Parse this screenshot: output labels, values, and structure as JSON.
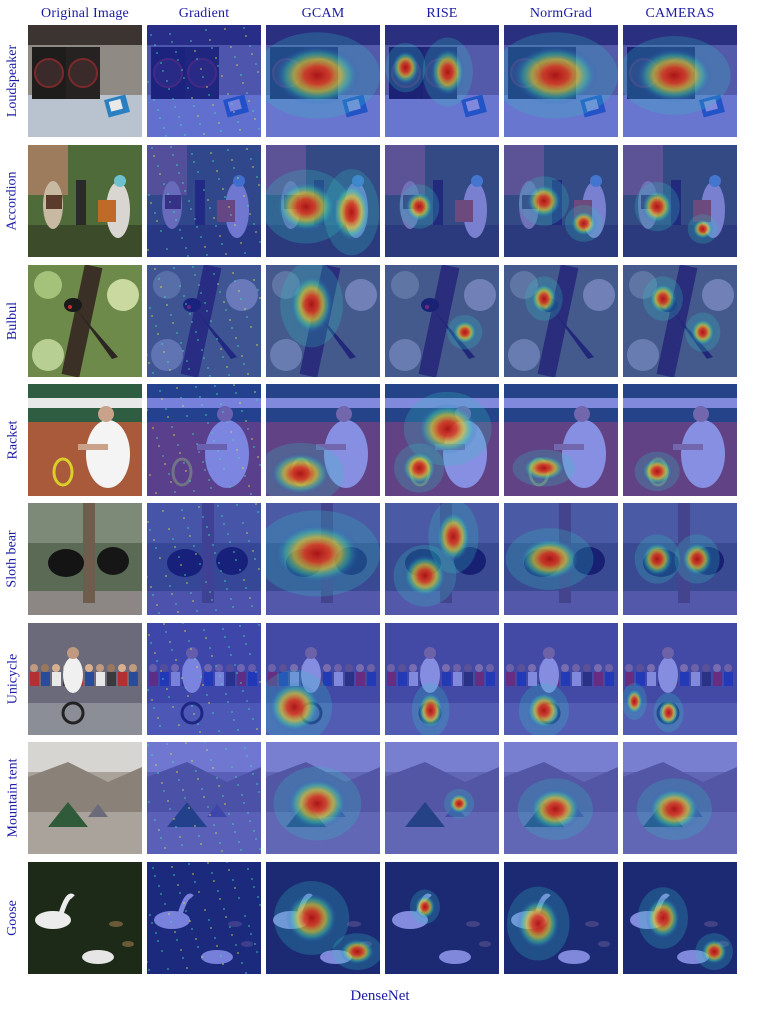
{
  "columns": [
    "Original Image",
    "Gradient",
    "GCAM",
    "RISE",
    "NormGrad",
    "CAMERAS"
  ],
  "rows": [
    {
      "label": "Loudspeaker",
      "scene": "speakers",
      "heat": {
        "gcam": [
          [
            0.45,
            0.45,
            0.5,
            0.35
          ]
        ],
        "rise": [
          [
            0.18,
            0.38,
            0.16,
            0.2
          ],
          [
            0.55,
            0.42,
            0.2,
            0.28
          ]
        ],
        "normgrad": [
          [
            0.45,
            0.45,
            0.5,
            0.35
          ]
        ],
        "cameras": [
          [
            0.45,
            0.45,
            0.45,
            0.32
          ]
        ]
      }
    },
    {
      "label": "Accordion",
      "scene": "street",
      "heat": {
        "gcam": [
          [
            0.35,
            0.55,
            0.35,
            0.3
          ],
          [
            0.75,
            0.6,
            0.22,
            0.35
          ]
        ],
        "rise": [
          [
            0.3,
            0.55,
            0.16,
            0.18
          ]
        ],
        "normgrad": [
          [
            0.35,
            0.5,
            0.2,
            0.2
          ],
          [
            0.7,
            0.7,
            0.15,
            0.15
          ]
        ],
        "cameras": [
          [
            0.3,
            0.55,
            0.18,
            0.2
          ],
          [
            0.7,
            0.75,
            0.12,
            0.12
          ]
        ]
      }
    },
    {
      "label": "Bulbul",
      "scene": "bird",
      "heat": {
        "gcam": [
          [
            0.4,
            0.35,
            0.25,
            0.35
          ]
        ],
        "rise": [
          [
            0.7,
            0.6,
            0.14,
            0.14
          ]
        ],
        "normgrad": [
          [
            0.35,
            0.3,
            0.15,
            0.18
          ]
        ],
        "cameras": [
          [
            0.35,
            0.3,
            0.16,
            0.18
          ],
          [
            0.7,
            0.6,
            0.14,
            0.16
          ]
        ]
      }
    },
    {
      "label": "Racket",
      "scene": "tennis",
      "heat": {
        "gcam": [
          [
            0.3,
            0.8,
            0.35,
            0.25
          ]
        ],
        "rise": [
          [
            0.55,
            0.4,
            0.35,
            0.3
          ],
          [
            0.3,
            0.75,
            0.2,
            0.2
          ]
        ],
        "normgrad": [
          [
            0.35,
            0.75,
            0.25,
            0.15
          ]
        ],
        "cameras": [
          [
            0.3,
            0.78,
            0.18,
            0.16
          ]
        ]
      }
    },
    {
      "label": "Sloth bear",
      "scene": "bears",
      "heat": {
        "gcam": [
          [
            0.45,
            0.45,
            0.5,
            0.35
          ]
        ],
        "rise": [
          [
            0.35,
            0.65,
            0.25,
            0.25
          ],
          [
            0.6,
            0.3,
            0.2,
            0.3
          ]
        ],
        "normgrad": [
          [
            0.4,
            0.5,
            0.35,
            0.25
          ]
        ],
        "cameras": [
          [
            0.3,
            0.5,
            0.18,
            0.2
          ],
          [
            0.65,
            0.5,
            0.18,
            0.2
          ]
        ]
      }
    },
    {
      "label": "Unicycle",
      "scene": "crowd",
      "heat": {
        "gcam": [
          [
            0.25,
            0.75,
            0.3,
            0.3
          ]
        ],
        "rise": [
          [
            0.4,
            0.78,
            0.15,
            0.22
          ]
        ],
        "normgrad": [
          [
            0.35,
            0.78,
            0.2,
            0.22
          ]
        ],
        "cameras": [
          [
            0.1,
            0.7,
            0.1,
            0.15
          ],
          [
            0.4,
            0.8,
            0.12,
            0.16
          ]
        ]
      }
    },
    {
      "label": "Mountain tent",
      "scene": "tent",
      "heat": {
        "gcam": [
          [
            0.45,
            0.55,
            0.35,
            0.3
          ]
        ],
        "rise": [
          [
            0.65,
            0.55,
            0.12,
            0.12
          ]
        ],
        "normgrad": [
          [
            0.45,
            0.6,
            0.3,
            0.25
          ]
        ],
        "cameras": [
          [
            0.45,
            0.6,
            0.3,
            0.25
          ]
        ]
      }
    },
    {
      "label": "Goose",
      "scene": "goose",
      "heat": {
        "gcam": [
          [
            0.4,
            0.5,
            0.3,
            0.3
          ],
          [
            0.8,
            0.8,
            0.2,
            0.15
          ]
        ],
        "rise": [
          [
            0.35,
            0.4,
            0.12,
            0.14
          ]
        ],
        "normgrad": [
          [
            0.3,
            0.55,
            0.25,
            0.3
          ]
        ],
        "cameras": [
          [
            0.35,
            0.5,
            0.2,
            0.25
          ],
          [
            0.8,
            0.8,
            0.15,
            0.15
          ]
        ]
      }
    }
  ],
  "footer": "DenseNet"
}
